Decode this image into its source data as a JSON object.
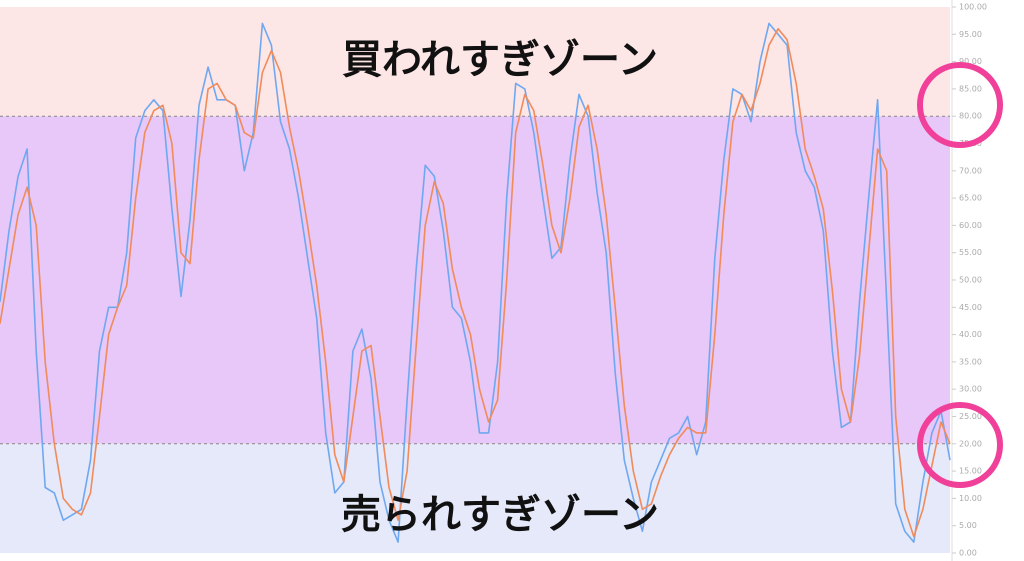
{
  "chart_data": {
    "type": "line",
    "overbought_label": "買われすぎゾーン",
    "oversold_label": "売られすぎゾーン",
    "upper_band": 80,
    "lower_band": 20,
    "band_colors": [
      "#fde6e6",
      "#e7c8f8",
      "#e6e9f9"
    ],
    "ylim": [
      0,
      100
    ],
    "yticks": [
      {
        "value": 0,
        "label": "0.00"
      },
      {
        "value": 5,
        "label": "5.00"
      },
      {
        "value": 10,
        "label": "10.00"
      },
      {
        "value": 15,
        "label": "15.00"
      },
      {
        "value": 20,
        "label": "20.00"
      },
      {
        "value": 25,
        "label": "25.00"
      },
      {
        "value": 30,
        "label": "30.00"
      },
      {
        "value": 35,
        "label": "35.00"
      },
      {
        "value": 40,
        "label": "40.00"
      },
      {
        "value": 45,
        "label": "45.00"
      },
      {
        "value": 50,
        "label": "50.00"
      },
      {
        "value": 55,
        "label": "55.00"
      },
      {
        "value": 60,
        "label": "60.00"
      },
      {
        "value": 65,
        "label": "65.00"
      },
      {
        "value": 70,
        "label": "70.00"
      },
      {
        "value": 75,
        "label": "75.00"
      },
      {
        "value": 80,
        "label": "80.00"
      },
      {
        "value": 85,
        "label": "85.00"
      },
      {
        "value": 90,
        "label": "90.00"
      },
      {
        "value": 95,
        "label": "95.00"
      },
      {
        "value": 100,
        "label": "100.00"
      }
    ],
    "series": [
      {
        "color": "#6fa8f0",
        "values": [
          46,
          59,
          69,
          74,
          37,
          12,
          11,
          6,
          7,
          8,
          17,
          37,
          45,
          45,
          55,
          76,
          81,
          83,
          81,
          63,
          47,
          61,
          82,
          89,
          83,
          83,
          82,
          70,
          77,
          97,
          93,
          79,
          74,
          65,
          54,
          43,
          22,
          11,
          13,
          37,
          41,
          32,
          13,
          6,
          2,
          28,
          52,
          71,
          69,
          59,
          45,
          43,
          35,
          22,
          22,
          35,
          65,
          86,
          85,
          77,
          65,
          54,
          56,
          72,
          84,
          80,
          66,
          55,
          33,
          17,
          10,
          4,
          13,
          17,
          21,
          22,
          25,
          18,
          24,
          54,
          72,
          85,
          84,
          79,
          90,
          97,
          95,
          93,
          77,
          70,
          67,
          59,
          37,
          23,
          24,
          46,
          65,
          83,
          46,
          9,
          4,
          2,
          13,
          22,
          26,
          17
        ]
      },
      {
        "color": "#f08b5b",
        "values": [
          42,
          52,
          62,
          67,
          60,
          35,
          20,
          10,
          8,
          7,
          11,
          25,
          40,
          45,
          49,
          65,
          77,
          81,
          82,
          75,
          55,
          53,
          72,
          85,
          86,
          83,
          82,
          77,
          76,
          88,
          92,
          88,
          78,
          70,
          60,
          49,
          35,
          18,
          13,
          25,
          37,
          38,
          25,
          12,
          6,
          15,
          38,
          60,
          68,
          64,
          52,
          45,
          40,
          30,
          24,
          28,
          50,
          77,
          84,
          81,
          71,
          60,
          55,
          65,
          78,
          82,
          74,
          62,
          45,
          27,
          15,
          8,
          9,
          14,
          18,
          21,
          23,
          22,
          22,
          40,
          62,
          79,
          84,
          81,
          86,
          93,
          96,
          94,
          86,
          74,
          69,
          63,
          48,
          30,
          24,
          36,
          55,
          74,
          70,
          25,
          8,
          3,
          8,
          16,
          24,
          20
        ]
      }
    ]
  }
}
